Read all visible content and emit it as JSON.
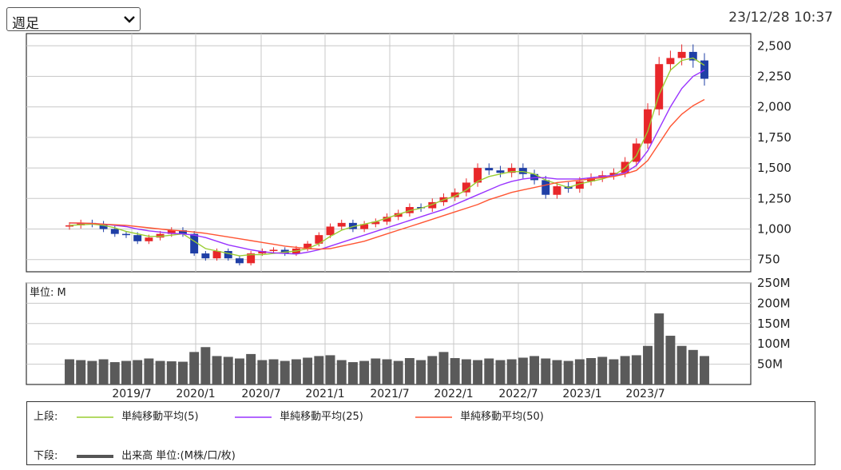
{
  "header": {
    "period_select": "週足",
    "timestamp": "23/12/28 10:37"
  },
  "chart_data": [
    {
      "type": "candlestick",
      "panel": "price",
      "y_ticks": [
        "2,500",
        "2,250",
        "2,000",
        "1,750",
        "1,500",
        "1,250",
        "1,000",
        "750"
      ],
      "ylim": [
        650,
        2600
      ],
      "x_ticks": [
        "2019/7",
        "2020/1",
        "2020/7",
        "2021/1",
        "2021/7",
        "2022/1",
        "2022/7",
        "2023/1",
        "2023/7"
      ],
      "grid": true,
      "x": [
        "2019/4",
        "2019/5",
        "2019/6",
        "2019/7",
        "2019/8",
        "2019/9",
        "2019/10",
        "2019/11",
        "2019/12",
        "2020/1",
        "2020/2",
        "2020/3",
        "2020/4",
        "2020/5",
        "2020/6",
        "2020/7",
        "2020/8",
        "2020/9",
        "2020/10",
        "2020/11",
        "2020/12",
        "2021/1",
        "2021/2",
        "2021/3",
        "2021/4",
        "2021/5",
        "2021/6",
        "2021/7",
        "2021/8",
        "2021/9",
        "2021/10",
        "2021/11",
        "2021/12",
        "2022/1",
        "2022/2",
        "2022/3",
        "2022/4",
        "2022/5",
        "2022/6",
        "2022/7",
        "2022/8",
        "2022/9",
        "2022/10",
        "2022/11",
        "2022/12",
        "2023/1",
        "2023/2",
        "2023/3",
        "2023/4",
        "2023/5",
        "2023/6",
        "2023/7",
        "2023/8",
        "2023/9",
        "2023/10",
        "2023/11",
        "2023/12"
      ],
      "close": [
        1030,
        1050,
        1040,
        1000,
        960,
        950,
        900,
        930,
        960,
        990,
        960,
        800,
        760,
        820,
        760,
        720,
        800,
        820,
        830,
        800,
        840,
        880,
        950,
        1020,
        1050,
        1000,
        1040,
        1060,
        1100,
        1130,
        1180,
        1170,
        1220,
        1260,
        1300,
        1380,
        1500,
        1480,
        1460,
        1500,
        1450,
        1400,
        1280,
        1350,
        1330,
        1390,
        1420,
        1440,
        1460,
        1550,
        1700,
        1980,
        2350,
        2400,
        2450,
        2380,
        2230
      ],
      "series": [
        {
          "name": "単純移動平均(5)",
          "values": [
            1030,
            1035,
            1040,
            1030,
            1010,
            980,
            960,
            940,
            940,
            950,
            960,
            900,
            840,
            820,
            800,
            780,
            790,
            790,
            800,
            810,
            820,
            840,
            880,
            940,
            990,
            1020,
            1040,
            1060,
            1090,
            1120,
            1150,
            1170,
            1200,
            1240,
            1270,
            1320,
            1390,
            1430,
            1450,
            1470,
            1470,
            1450,
            1400,
            1370,
            1340,
            1370,
            1390,
            1410,
            1440,
            1500,
            1600,
            1800,
            2100,
            2300,
            2380,
            2400,
            2340
          ]
        },
        {
          "name": "単純移動平均(25)",
          "values": [
            1050,
            1048,
            1045,
            1040,
            1030,
            1020,
            1000,
            985,
            975,
            965,
            960,
            950,
            930,
            900,
            870,
            850,
            830,
            815,
            805,
            800,
            795,
            810,
            830,
            860,
            890,
            920,
            950,
            980,
            1010,
            1040,
            1070,
            1100,
            1130,
            1160,
            1200,
            1240,
            1280,
            1320,
            1360,
            1390,
            1410,
            1420,
            1420,
            1410,
            1410,
            1410,
            1420,
            1430,
            1440,
            1460,
            1520,
            1640,
            1820,
            2000,
            2150,
            2250,
            2300
          ]
        },
        {
          "name": "単純移動平均(50)",
          "values": [
            1050,
            1050,
            1045,
            1040,
            1035,
            1030,
            1020,
            1010,
            1000,
            990,
            985,
            975,
            965,
            950,
            935,
            920,
            905,
            890,
            875,
            860,
            850,
            840,
            835,
            840,
            860,
            880,
            900,
            930,
            960,
            990,
            1020,
            1050,
            1080,
            1110,
            1140,
            1170,
            1200,
            1240,
            1270,
            1300,
            1320,
            1340,
            1360,
            1380,
            1390,
            1400,
            1410,
            1420,
            1430,
            1450,
            1480,
            1560,
            1700,
            1840,
            1940,
            2010,
            2060
          ]
        }
      ]
    },
    {
      "type": "bar",
      "panel": "volume",
      "y_ticks": [
        "250M",
        "200M",
        "150M",
        "100M",
        "50M"
      ],
      "ylim": [
        0,
        250
      ],
      "unit_label": "単位: M",
      "values": [
        62,
        60,
        58,
        62,
        55,
        58,
        60,
        64,
        58,
        57,
        56,
        80,
        92,
        70,
        68,
        64,
        75,
        60,
        62,
        58,
        62,
        66,
        70,
        72,
        60,
        55,
        58,
        64,
        62,
        58,
        65,
        60,
        70,
        80,
        65,
        62,
        60,
        64,
        60,
        62,
        66,
        70,
        64,
        60,
        58,
        62,
        65,
        68,
        62,
        70,
        72,
        95,
        175,
        120,
        95,
        85,
        70
      ]
    }
  ],
  "legend": {
    "upper_label": "上段:",
    "lower_label": "下段:",
    "items": [
      {
        "label": "単純移動平均(5)",
        "color": "#9acd32"
      },
      {
        "label": "単純移動平均(25)",
        "color": "#9933ff"
      },
      {
        "label": "単純移動平均(50)",
        "color": "#ff5533"
      }
    ],
    "volume_item": {
      "label": "出来高 単位:(M株/口/枚)",
      "color": "#555555"
    }
  },
  "colors": {
    "up_candle": "#e8272a",
    "down_candle": "#1f3fa6",
    "volume_bar": "#5a5a5a",
    "grid": "#c8c8c8",
    "border": "#333333"
  }
}
